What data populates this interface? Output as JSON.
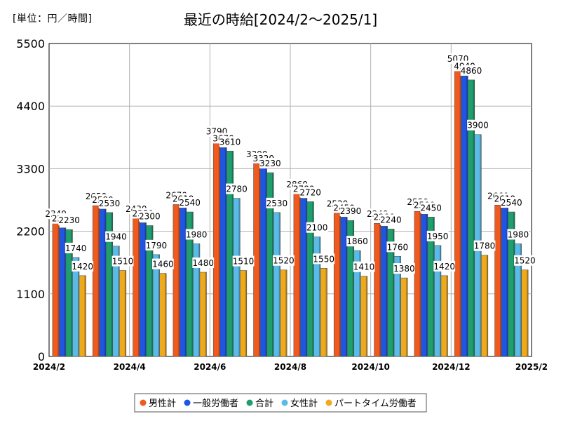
{
  "unit_label": "[単位：円／時間]",
  "chart_data": {
    "type": "bar",
    "title": "最近の時給[2024/2～2025/1]",
    "ylim": [
      0,
      5500
    ],
    "y_ticks": [
      0,
      1100,
      2200,
      3300,
      4400,
      5500
    ],
    "x_tick_labels": [
      "2024/2",
      "2024/4",
      "2024/6",
      "2024/8",
      "2024/10",
      "2024/12",
      "2025/2"
    ],
    "categories": [
      "2024/2",
      "2024/3",
      "2024/4",
      "2024/5",
      "2024/6",
      "2024/7",
      "2024/8",
      "2024/9",
      "2024/10",
      "2024/11",
      "2024/12",
      "2025/1"
    ],
    "series": [
      {
        "name": "男性計",
        "color": "#f05a1e",
        "values": [
          2340,
          2650,
          2430,
          2670,
          3790,
          3390,
          2860,
          2520,
          2340,
          2550,
          5070,
          2660
        ]
      },
      {
        "name": "一般労働者",
        "color": "#1f55e0",
        "values": [
          2260,
          2590,
          2350,
          2610,
          3670,
          3320,
          2780,
          2450,
          2290,
          2500,
          4940,
          2610
        ]
      },
      {
        "name": "合計",
        "color": "#1f9e6e",
        "values": [
          2230,
          2530,
          2300,
          2540,
          3610,
          3230,
          2720,
          2390,
          2240,
          2450,
          4860,
          2540
        ]
      },
      {
        "name": "女性計",
        "color": "#5bbbe8",
        "values": [
          1740,
          1940,
          1790,
          1980,
          2780,
          2530,
          2100,
          1860,
          1760,
          1950,
          3900,
          1980
        ]
      },
      {
        "name": "パートタイム労働者",
        "color": "#eeaa1c",
        "values": [
          1420,
          1510,
          1460,
          1480,
          1510,
          1520,
          1550,
          1410,
          1380,
          1420,
          1780,
          1520
        ]
      }
    ],
    "legend_position": "bottom",
    "grid": true
  }
}
